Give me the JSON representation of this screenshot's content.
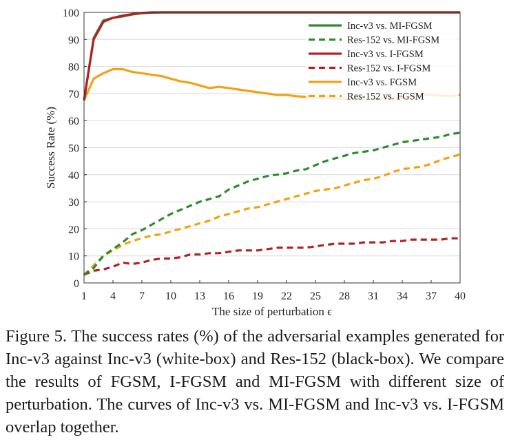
{
  "chart_data": {
    "type": "line",
    "xlabel": "The size of perturbation ϵ",
    "ylabel": "Success Rate (%)",
    "xlim": [
      1,
      40
    ],
    "ylim": [
      0,
      100
    ],
    "xticks": [
      1,
      4,
      7,
      10,
      13,
      16,
      19,
      22,
      25,
      28,
      31,
      34,
      37,
      40
    ],
    "yticks": [
      0,
      10,
      20,
      30,
      40,
      50,
      60,
      70,
      80,
      90,
      100
    ],
    "grid": "horizontal",
    "legend_position": "top-right",
    "x": [
      1,
      2,
      3,
      4,
      5,
      6,
      7,
      8,
      9,
      10,
      11,
      12,
      13,
      14,
      15,
      16,
      17,
      18,
      19,
      20,
      21,
      22,
      23,
      24,
      25,
      26,
      27,
      28,
      29,
      30,
      31,
      32,
      33,
      34,
      35,
      36,
      37,
      38,
      39,
      40
    ],
    "series": [
      {
        "name": "Inc-v3 vs. MI-FGSM",
        "color": "#2e8b2e",
        "dash": "solid",
        "values": [
          67.5,
          90.5,
          97,
          98,
          98.5,
          99.2,
          99.7,
          99.9,
          100,
          100,
          100,
          100,
          100,
          100,
          100,
          100,
          100,
          100,
          100,
          100,
          100,
          100,
          100,
          100,
          100,
          100,
          100,
          100,
          100,
          100,
          100,
          100,
          100,
          100,
          100,
          100,
          100,
          100,
          100,
          100
        ]
      },
      {
        "name": "Res-152 vs. MI-FGSM",
        "color": "#2e8b2e",
        "dash": "dashed",
        "values": [
          3,
          5.5,
          10,
          12.5,
          15,
          18,
          19.5,
          21.5,
          23.5,
          25.5,
          27,
          28.5,
          30,
          31,
          32,
          34.5,
          36,
          37.5,
          38.5,
          39.5,
          40,
          40.5,
          41.5,
          42,
          43.5,
          45,
          46,
          47,
          48,
          48.5,
          49,
          50,
          51,
          52,
          52.5,
          53,
          53.5,
          54,
          55,
          55.5
        ]
      },
      {
        "name": "Inc-v3 vs. I-FGSM",
        "color": "#b22222",
        "dash": "solid",
        "values": [
          67.5,
          90,
          96.5,
          98,
          98.8,
          99.4,
          99.8,
          100,
          100,
          100,
          100,
          100,
          100,
          100,
          100,
          100,
          100,
          100,
          100,
          100,
          100,
          100,
          100,
          100,
          100,
          100,
          100,
          100,
          100,
          100,
          100,
          100,
          100,
          100,
          100,
          100,
          100,
          100,
          100,
          100
        ]
      },
      {
        "name": "Res-152 vs. I-FGSM",
        "color": "#b22222",
        "dash": "dashed",
        "values": [
          3,
          4.5,
          5,
          6,
          7.5,
          7,
          7.5,
          8.5,
          9,
          9,
          9.5,
          10.5,
          10.5,
          11,
          11,
          11.5,
          12,
          12,
          12,
          12.5,
          13,
          13,
          13,
          13,
          13.5,
          14,
          14.5,
          14.5,
          14.5,
          15,
          15,
          15,
          15.5,
          15.5,
          16,
          16,
          16,
          16,
          16.5,
          16.5
        ]
      },
      {
        "name": "Inc-v3 vs. FGSM",
        "color": "#f5a011",
        "dash": "solid",
        "values": [
          67.5,
          75.5,
          77.5,
          79,
          79,
          78,
          77.5,
          77,
          76.5,
          75.5,
          74.5,
          74,
          73,
          72,
          72.5,
          72,
          71.5,
          71,
          70.5,
          70,
          69.5,
          69.5,
          69,
          68.8,
          68.5,
          68.5,
          68.2,
          68,
          68,
          68,
          67.8,
          68,
          68.2,
          68.5,
          69,
          69.5,
          69.5,
          69.2,
          69,
          69.5
        ]
      },
      {
        "name": "Res-152 vs. FGSM",
        "color": "#f5a011",
        "dash": "dashed",
        "values": [
          3,
          6.5,
          10,
          12,
          14,
          15.5,
          16.5,
          17.5,
          18,
          19,
          20,
          21,
          22,
          23,
          24.5,
          25.5,
          26.5,
          27.5,
          28,
          29,
          30,
          31,
          32,
          33,
          34,
          34.5,
          35,
          36,
          37,
          38,
          38.5,
          39.5,
          41,
          42,
          42.5,
          43,
          44,
          45.5,
          46.5,
          47.5
        ]
      }
    ]
  },
  "caption": "Figure 5. The success rates (%) of the adversarial examples generated for Inc-v3 against Inc-v3 (white-box) and Res-152 (black-box). We compare the results of FGSM, I-FGSM and MI-FGSM with different size of perturbation. The curves of Inc-v3 vs. MI-FGSM and Inc-v3 vs. I-FGSM overlap together."
}
